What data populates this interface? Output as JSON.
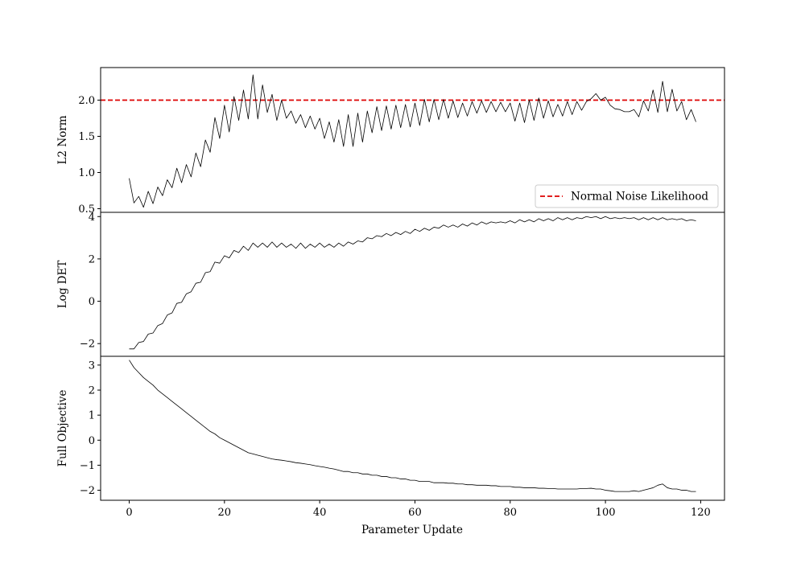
{
  "chart_data": {
    "type": "line",
    "xlabel": "Parameter Update",
    "xlim": [
      -6,
      125
    ],
    "xticks": [
      0,
      20,
      40,
      60,
      80,
      100,
      120
    ],
    "panels": [
      {
        "id": "l2",
        "ylabel": "L2 Norm",
        "ylim": [
          0.45,
          2.45
        ],
        "yticks": [
          0.5,
          1.0,
          1.5,
          2.0
        ],
        "ytick_labels": [
          "0.5",
          "1.0",
          "1.5",
          "2.0"
        ],
        "series": [
          {
            "color": "#000000",
            "x_start": 0,
            "values": [
              0.92,
              0.58,
              0.67,
              0.52,
              0.74,
              0.57,
              0.8,
              0.68,
              0.9,
              0.79,
              1.06,
              0.86,
              1.11,
              0.94,
              1.27,
              1.08,
              1.45,
              1.28,
              1.76,
              1.47,
              1.93,
              1.56,
              2.05,
              1.72,
              2.14,
              1.74,
              2.35,
              1.74,
              2.21,
              1.83,
              2.08,
              1.72,
              2.0,
              1.75,
              1.85,
              1.68,
              1.8,
              1.62,
              1.78,
              1.6,
              1.75,
              1.47,
              1.7,
              1.42,
              1.73,
              1.36,
              1.8,
              1.36,
              1.82,
              1.42,
              1.85,
              1.55,
              1.91,
              1.58,
              1.92,
              1.6,
              1.93,
              1.62,
              1.94,
              1.63,
              1.96,
              1.65,
              2.01,
              1.7,
              2.01,
              1.73,
              2.01,
              1.75,
              1.99,
              1.76,
              1.96,
              1.78,
              1.98,
              1.82,
              1.99,
              1.83,
              1.98,
              1.84,
              1.97,
              1.84,
              1.96,
              1.71,
              1.96,
              1.69,
              2.0,
              1.72,
              2.03,
              1.75,
              1.99,
              1.77,
              1.94,
              1.78,
              1.98,
              1.8,
              1.98,
              1.86,
              1.98,
              2.02,
              2.09,
              2.0,
              2.04,
              1.93,
              1.88,
              1.87,
              1.84,
              1.84,
              1.87,
              1.77,
              1.99,
              1.85,
              2.14,
              1.83,
              2.26,
              1.84,
              2.15,
              1.85,
              1.98,
              1.73,
              1.87,
              1.7
            ]
          }
        ],
        "reference_line": {
          "label": "Normal Noise Likelihood",
          "y": 2.0,
          "color": "#dd0000",
          "style": "dashed"
        },
        "legend_position": "lower-right"
      },
      {
        "id": "logdet",
        "ylabel": "Log DET",
        "ylim": [
          -2.6,
          4.2
        ],
        "yticks": [
          -2,
          0,
          2,
          4
        ],
        "ytick_labels": [
          "−2",
          "0",
          "2",
          "4"
        ],
        "series": [
          {
            "color": "#000000",
            "x_start": 0,
            "values": [
              -2.25,
              -2.25,
              -1.95,
              -1.9,
              -1.55,
              -1.5,
              -1.15,
              -1.05,
              -0.65,
              -0.55,
              -0.1,
              -0.05,
              0.35,
              0.45,
              0.85,
              0.9,
              1.35,
              1.4,
              1.85,
              1.8,
              2.15,
              2.05,
              2.4,
              2.3,
              2.6,
              2.4,
              2.75,
              2.55,
              2.75,
              2.55,
              2.8,
              2.55,
              2.75,
              2.55,
              2.7,
              2.5,
              2.75,
              2.5,
              2.7,
              2.55,
              2.75,
              2.55,
              2.7,
              2.55,
              2.75,
              2.6,
              2.8,
              2.7,
              2.85,
              2.8,
              3.0,
              2.95,
              3.1,
              3.05,
              3.2,
              3.1,
              3.25,
              3.15,
              3.3,
              3.2,
              3.4,
              3.3,
              3.45,
              3.35,
              3.5,
              3.45,
              3.6,
              3.5,
              3.6,
              3.5,
              3.65,
              3.55,
              3.7,
              3.6,
              3.75,
              3.65,
              3.75,
              3.7,
              3.75,
              3.7,
              3.8,
              3.7,
              3.85,
              3.75,
              3.85,
              3.75,
              3.9,
              3.8,
              3.9,
              3.8,
              3.95,
              3.85,
              3.95,
              3.85,
              3.95,
              3.9,
              4.0,
              3.95,
              4.0,
              3.9,
              4.0,
              3.9,
              3.95,
              3.9,
              3.95,
              3.9,
              3.95,
              3.85,
              3.95,
              3.85,
              3.95,
              3.85,
              3.95,
              3.85,
              3.9,
              3.85,
              3.9,
              3.8,
              3.85,
              3.8
            ]
          }
        ]
      },
      {
        "id": "objective",
        "ylabel": "Full Objective",
        "ylim": [
          -2.4,
          3.35
        ],
        "yticks": [
          -2,
          -1,
          0,
          1,
          2,
          3
        ],
        "ytick_labels": [
          "−2",
          "−1",
          "0",
          "1",
          "2",
          "3"
        ],
        "series": [
          {
            "color": "#000000",
            "x_start": 0,
            "values": [
              3.2,
              2.9,
              2.7,
              2.5,
              2.35,
              2.2,
              2.0,
              1.85,
              1.7,
              1.55,
              1.4,
              1.25,
              1.1,
              0.95,
              0.8,
              0.65,
              0.5,
              0.35,
              0.25,
              0.1,
              0.0,
              -0.1,
              -0.2,
              -0.3,
              -0.4,
              -0.5,
              -0.55,
              -0.6,
              -0.65,
              -0.7,
              -0.75,
              -0.78,
              -0.8,
              -0.83,
              -0.86,
              -0.9,
              -0.92,
              -0.95,
              -0.98,
              -1.02,
              -1.05,
              -1.08,
              -1.12,
              -1.15,
              -1.2,
              -1.25,
              -1.25,
              -1.3,
              -1.3,
              -1.35,
              -1.35,
              -1.4,
              -1.4,
              -1.45,
              -1.45,
              -1.5,
              -1.5,
              -1.55,
              -1.55,
              -1.6,
              -1.6,
              -1.65,
              -1.65,
              -1.65,
              -1.7,
              -1.7,
              -1.7,
              -1.72,
              -1.72,
              -1.75,
              -1.75,
              -1.78,
              -1.78,
              -1.8,
              -1.8,
              -1.8,
              -1.82,
              -1.82,
              -1.85,
              -1.85,
              -1.85,
              -1.88,
              -1.88,
              -1.9,
              -1.9,
              -1.9,
              -1.92,
              -1.92,
              -1.93,
              -1.93,
              -1.95,
              -1.95,
              -1.95,
              -1.95,
              -1.95,
              -1.93,
              -1.93,
              -1.92,
              -1.95,
              -1.95,
              -2.0,
              -2.02,
              -2.05,
              -2.05,
              -2.05,
              -2.05,
              -2.02,
              -2.05,
              -2.0,
              -1.95,
              -1.9,
              -1.8,
              -1.75,
              -1.9,
              -1.95,
              -1.95,
              -2.0,
              -2.0,
              -2.05,
              -2.05
            ]
          }
        ]
      }
    ]
  }
}
